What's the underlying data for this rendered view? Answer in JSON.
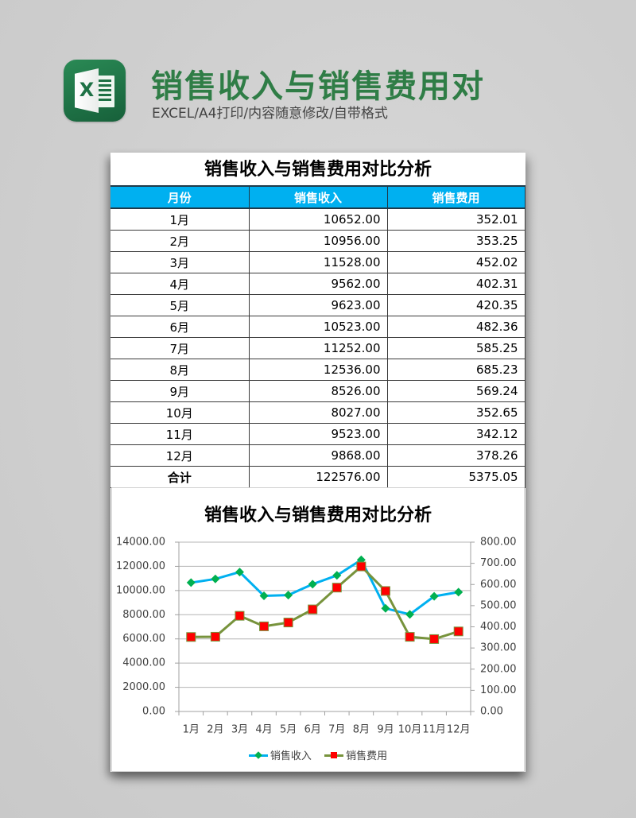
{
  "header": {
    "title": "销售收入与销售费用对",
    "subtitle": "EXCEL/A4打印/内容随意修改/自带格式",
    "icon": "excel-icon",
    "icon_letter": "X"
  },
  "table": {
    "title": "销售收入与销售费用对比分析",
    "columns": [
      "月份",
      "销售收入",
      "销售费用"
    ],
    "rows": [
      {
        "month": "1月",
        "revenue": "10652.00",
        "expense": "352.01"
      },
      {
        "month": "2月",
        "revenue": "10956.00",
        "expense": "353.25"
      },
      {
        "month": "3月",
        "revenue": "11528.00",
        "expense": "452.02"
      },
      {
        "month": "4月",
        "revenue": "9562.00",
        "expense": "402.31"
      },
      {
        "month": "5月",
        "revenue": "9623.00",
        "expense": "420.35"
      },
      {
        "month": "6月",
        "revenue": "10523.00",
        "expense": "482.36"
      },
      {
        "month": "7月",
        "revenue": "11252.00",
        "expense": "585.25"
      },
      {
        "month": "8月",
        "revenue": "12536.00",
        "expense": "685.23"
      },
      {
        "month": "9月",
        "revenue": "8526.00",
        "expense": "569.24"
      },
      {
        "month": "10月",
        "revenue": "8027.00",
        "expense": "352.65"
      },
      {
        "month": "11月",
        "revenue": "9523.00",
        "expense": "342.12"
      },
      {
        "month": "12月",
        "revenue": "9868.00",
        "expense": "378.26"
      }
    ],
    "total": {
      "label": "合计",
      "revenue": "122576.00",
      "expense": "5375.05"
    }
  },
  "colors": {
    "title_green": "#2f7d46",
    "header_blue": "#00b0f0",
    "revenue_line": "#00b0f0",
    "revenue_marker": "#00b050",
    "expense_line": "#77933c",
    "expense_marker": "#ff0000",
    "gridline": "#b4b4b4",
    "axis": "#a0a0a0"
  },
  "chart_data": {
    "type": "line",
    "title": "销售收入与销售费用对比分析",
    "categories": [
      "1月",
      "2月",
      "3月",
      "4月",
      "5月",
      "6月",
      "7月",
      "8月",
      "9月",
      "10月",
      "11月",
      "12月"
    ],
    "series": [
      {
        "name": "销售收入",
        "axis": "left",
        "marker": "diamond",
        "values": [
          10652,
          10956,
          11528,
          9562,
          9623,
          10523,
          11252,
          12536,
          8526,
          8027,
          9523,
          9868
        ]
      },
      {
        "name": "销售费用",
        "axis": "right",
        "marker": "square",
        "values": [
          352.01,
          353.25,
          452.02,
          402.31,
          420.35,
          482.36,
          585.25,
          685.23,
          569.24,
          352.65,
          342.12,
          378.26
        ]
      }
    ],
    "xlabel": "",
    "ylabel": "",
    "ylim_left": [
      0,
      14000
    ],
    "ytick_step_left": 2000,
    "ylim_right": [
      0,
      800
    ],
    "ytick_step_right": 100,
    "tick_decimals": 2,
    "grid": true,
    "legend_position": "bottom"
  }
}
